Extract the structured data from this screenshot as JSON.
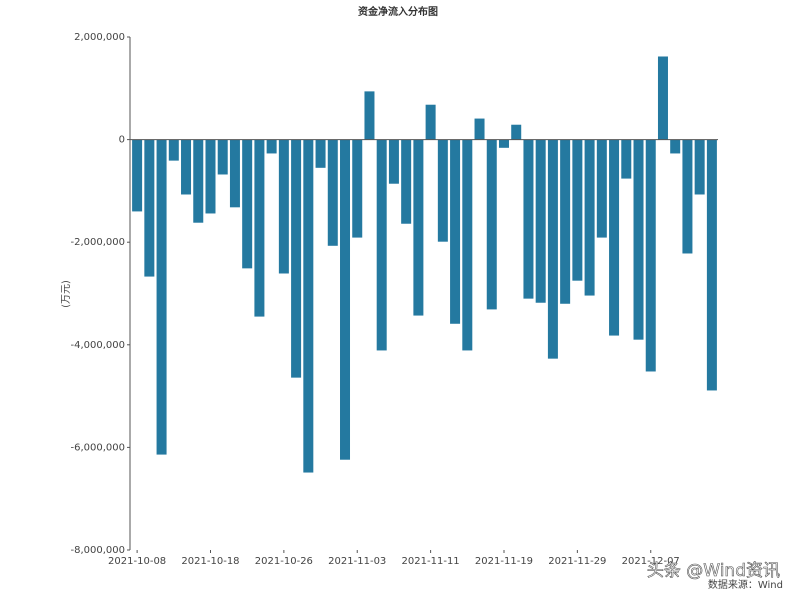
{
  "chart_data": {
    "type": "bar",
    "title": "资金净流入分布图",
    "y_label": "(万元)",
    "source": "数据来源：Wind",
    "watermark": "头条 @Wind资讯",
    "categories": [
      "2021-10-08",
      null,
      null,
      null,
      null,
      null,
      "2021-10-18",
      null,
      null,
      null,
      null,
      null,
      "2021-10-26",
      null,
      null,
      null,
      null,
      null,
      "2021-11-03",
      null,
      null,
      null,
      null,
      null,
      "2021-11-11",
      null,
      null,
      null,
      null,
      null,
      "2021-11-19",
      null,
      null,
      null,
      null,
      null,
      "2021-11-29",
      null,
      null,
      null,
      null,
      null,
      "2021-12-07",
      null,
      null,
      null,
      null,
      null
    ],
    "values": [
      -1400000,
      -2670000,
      -6140000,
      -410000,
      -1070000,
      -1620000,
      -1440000,
      -680000,
      -1320000,
      -2510000,
      -3450000,
      -270000,
      -2610000,
      -4640000,
      -6490000,
      -550000,
      -2070000,
      -6240000,
      -1910000,
      940000,
      -4110000,
      -860000,
      -1640000,
      -3430000,
      680000,
      -1990000,
      -3590000,
      -4110000,
      410000,
      -3310000,
      -160000,
      290000,
      -3100000,
      -3180000,
      -4270000,
      -3200000,
      -2750000,
      -3040000,
      -1910000,
      -3820000,
      -760000,
      -3900000,
      -4520000,
      1620000,
      -270000,
      -2220000,
      -1070000,
      -4890000
    ],
    "color": "#2479a0",
    "ylim": [
      -8000000,
      2000000
    ],
    "yticks": [
      {
        "value": -8000000,
        "label": "-8,000,000"
      },
      {
        "value": -6000000,
        "label": "-6,000,000"
      },
      {
        "value": -4000000,
        "label": "-4,000,000"
      },
      {
        "value": -2000000,
        "label": "-2,000,000"
      },
      0,
      {
        "value": 2000000,
        "label": "2,000,000"
      }
    ]
  }
}
